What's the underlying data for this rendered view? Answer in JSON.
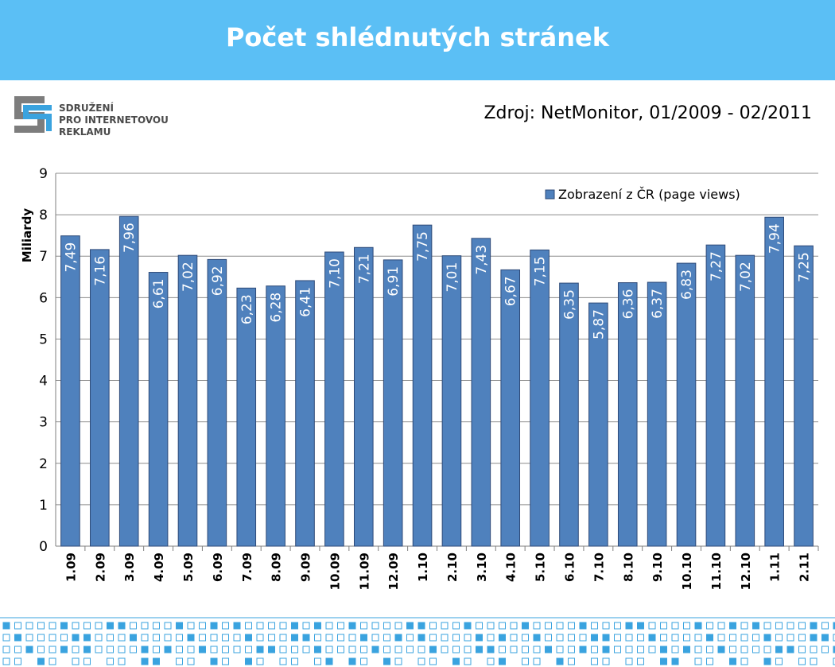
{
  "header": {
    "title": "Počet shlédnutých stránek"
  },
  "logo": {
    "lines": [
      "SDRUŽENÍ",
      "PRO INTERNETOVOU",
      "REKLAMU"
    ]
  },
  "source": {
    "text": "Zdroj: NetMonitor, 01/2009 - 02/2011"
  },
  "colors": {
    "header": "#5bbff5",
    "bar": "#4f81bd",
    "bar_border": "#2e4a78",
    "dots": "#3aa3df"
  },
  "chart_data": {
    "type": "bar",
    "title": "",
    "xlabel": "",
    "ylabel": "Miliardy",
    "ylim": [
      0,
      9
    ],
    "yticks": [
      "0",
      "1",
      "2",
      "3",
      "4",
      "5",
      "6",
      "7",
      "8",
      "9"
    ],
    "categories": [
      "1.09",
      "2.09",
      "3.09",
      "4.09",
      "5.09",
      "6.09",
      "7.09",
      "8.09",
      "9.09",
      "10.09",
      "11.09",
      "12.09",
      "1.10",
      "2.10",
      "3.10",
      "4.10",
      "5.10",
      "6.10",
      "7.10",
      "8.10",
      "9.10",
      "10.10",
      "11.10",
      "12.10",
      "1.11",
      "2.11"
    ],
    "series": [
      {
        "name": "Zobrazení z ČR (page views)",
        "values": [
          7.49,
          7.16,
          7.96,
          6.61,
          7.02,
          6.92,
          6.23,
          6.28,
          6.41,
          7.1,
          7.21,
          6.91,
          7.75,
          7.01,
          7.43,
          6.67,
          7.15,
          6.35,
          5.87,
          6.36,
          6.37,
          6.83,
          7.27,
          7.02,
          7.94,
          7.25
        ],
        "labels": [
          "7,49",
          "7,16",
          "7,96",
          "6,61",
          "7,02",
          "6,92",
          "6,23",
          "6,28",
          "6,41",
          "7,10",
          "7,21",
          "6,91",
          "7,75",
          "7,01",
          "7,43",
          "6,67",
          "7,15",
          "6,35",
          "5,87",
          "6,36",
          "6,37",
          "6,83",
          "7,27",
          "7,02",
          "7,94",
          "7,25"
        ]
      }
    ],
    "grid": true,
    "legend": "top-right"
  }
}
